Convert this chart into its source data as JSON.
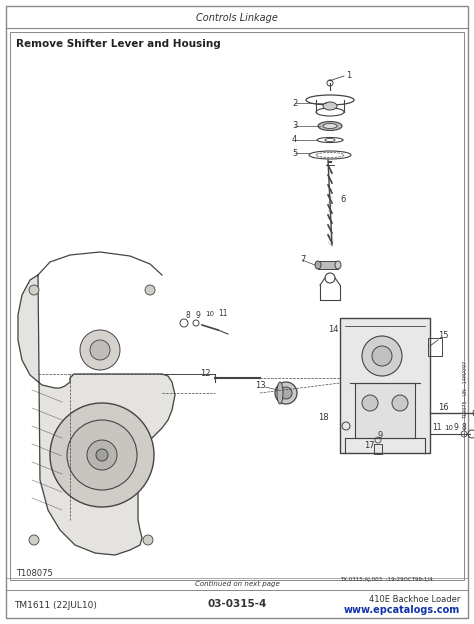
{
  "page_bg": "#ffffff",
  "header_text": "Controls Linkage",
  "section_title": "Remove Shifter Lever and Housing",
  "footer_left": "TM1611 (22JUL10)",
  "footer_center": "03-0315-4",
  "footer_right": "410E Backhoe Loader",
  "footer_url": "www.epcatalogs.com",
  "footer_note": "Continued on next page",
  "figure_id": "T108075",
  "border_color": "#888888",
  "text_color": "#333333",
  "line_color": "#444444",
  "dark_line": "#222222"
}
